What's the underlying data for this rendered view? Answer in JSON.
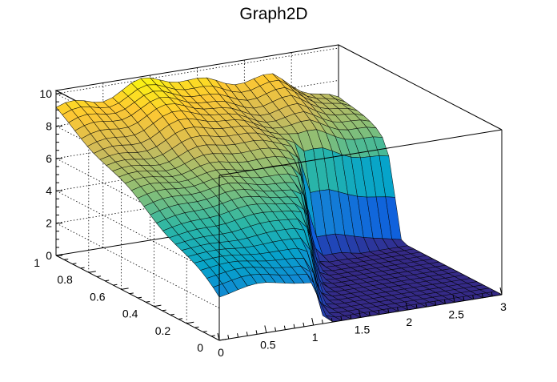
{
  "chart_data": {
    "type": "surface",
    "title": "Graph2D",
    "xlabel": "",
    "ylabel": "",
    "zlabel": "",
    "x_ticks": [
      "0",
      "0.5",
      "1",
      "1.5",
      "2",
      "2.5",
      "3"
    ],
    "y_ticks": [
      "0",
      "0.2",
      "0.4",
      "0.6",
      "0.8",
      "1"
    ],
    "z_ticks": [
      "0",
      "2",
      "4",
      "6",
      "8",
      "10"
    ],
    "xlim": [
      0,
      3
    ],
    "ylim": [
      0,
      1
    ],
    "zlim": [
      0,
      10.2
    ],
    "grid": true,
    "colormap": [
      "#352a87",
      "#0f5cdd",
      "#1481d6",
      "#06a4ca",
      "#2eb7a4",
      "#87bf77",
      "#d1bb59",
      "#fec832",
      "#f9fb0e"
    ],
    "surface_description_points": [
      {
        "x": 0.0,
        "y": 1.0,
        "z": 8.9
      },
      {
        "x": 0.0,
        "y": 0.5,
        "z": 6.0
      },
      {
        "x": 0.0,
        "y": 0.0,
        "z": 2.6
      },
      {
        "x": 1.0,
        "y": 1.0,
        "z": 10.2
      },
      {
        "x": 1.0,
        "y": 0.5,
        "z": 6.5
      },
      {
        "x": 1.0,
        "y": 0.0,
        "z": 2.8
      },
      {
        "x": 1.1,
        "y": 0.0,
        "z": 0.0
      },
      {
        "x": 2.0,
        "y": 1.0,
        "z": 8.8
      },
      {
        "x": 2.0,
        "y": 0.5,
        "z": 4.8
      },
      {
        "x": 2.0,
        "y": 0.0,
        "z": 0.0
      },
      {
        "x": 3.0,
        "y": 1.0,
        "z": 7.0
      },
      {
        "x": 3.0,
        "y": 0.6,
        "z": 4.2
      },
      {
        "x": 3.0,
        "y": 0.0,
        "z": 0.0
      }
    ]
  }
}
